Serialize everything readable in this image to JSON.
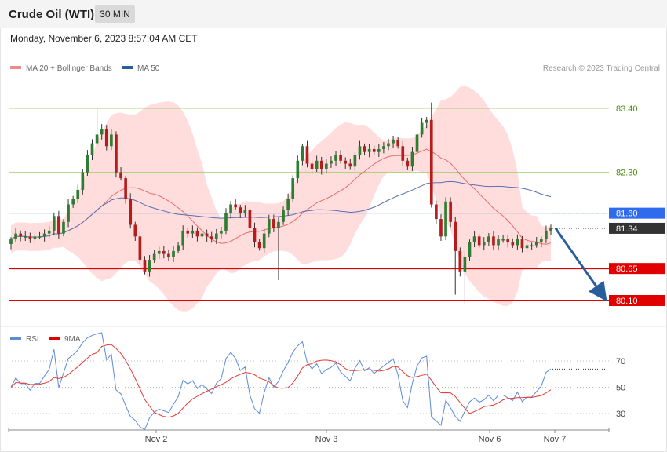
{
  "header": {
    "title": "Crude Oil (WTI)",
    "timeframe": "30 MIN"
  },
  "timestamp": "Monday, November 6, 2023 8:57:04 AM CET",
  "legend": {
    "ma20": "MA 20 + Bollinger Bands",
    "ma50": "MA 50"
  },
  "copyright": "Research © 2023 Trading Central",
  "colors": {
    "candle_up": "#2e7d32",
    "candle_down": "#b71c1c",
    "band_fill": "#ffd7d7",
    "ma20": "#e86a6a",
    "ma50": "#5b6fb0",
    "resistance": "#8bc34a",
    "support": "#e00000",
    "pivot": "#3b6fe0",
    "rsi": "#5b8bd9",
    "rsi_ma": "#e53935",
    "arrow": "#2a5d9b"
  },
  "chart_data": [
    {
      "type": "candlestick",
      "panel": "price",
      "y_axis_range": [
        79.6,
        84.1
      ],
      "x_ticks": [
        "Nov 2",
        "Nov 3",
        "Nov 6",
        "Nov 7"
      ],
      "levels": [
        {
          "label": "83.40",
          "value": 83.4,
          "kind": "resistance"
        },
        {
          "label": "82.30",
          "value": 82.3,
          "kind": "resistance"
        },
        {
          "label": "81.60",
          "value": 81.6,
          "kind": "pivot"
        },
        {
          "label": "81.34",
          "value": 81.34,
          "kind": "last"
        },
        {
          "label": "80.65",
          "value": 80.65,
          "kind": "support"
        },
        {
          "label": "80.10",
          "value": 80.1,
          "kind": "support"
        }
      ],
      "closes": [
        81.15,
        81.25,
        81.2,
        81.2,
        81.15,
        81.2,
        81.2,
        81.25,
        81.3,
        81.55,
        81.25,
        81.45,
        81.75,
        81.85,
        82.0,
        82.3,
        82.6,
        82.8,
        82.95,
        83.05,
        82.75,
        82.95,
        82.3,
        82.2,
        81.85,
        81.4,
        81.2,
        80.8,
        80.6,
        80.8,
        80.9,
        80.95,
        80.9,
        80.85,
        80.95,
        81.05,
        81.3,
        81.25,
        81.3,
        81.2,
        81.25,
        81.2,
        81.15,
        81.25,
        81.3,
        81.6,
        81.75,
        81.7,
        81.6,
        81.65,
        81.35,
        81.1,
        81.0,
        81.25,
        81.5,
        81.35,
        81.45,
        81.65,
        81.85,
        82.2,
        82.5,
        82.75,
        82.45,
        82.35,
        82.5,
        82.35,
        82.45,
        82.5,
        82.6,
        82.5,
        82.45,
        82.4,
        82.6,
        82.75,
        82.65,
        82.7,
        82.65,
        82.7,
        82.75,
        82.8,
        82.85,
        82.75,
        82.5,
        82.4,
        82.65,
        82.95,
        83.15,
        83.2,
        81.75,
        81.5,
        81.2,
        81.8,
        81.45,
        80.95,
        80.6,
        80.85,
        81.1,
        81.2,
        81.05,
        81.1,
        81.2,
        81.05,
        81.15,
        81.15,
        81.1,
        81.05,
        81.15,
        81.0,
        81.05,
        81.05,
        81.1,
        81.15,
        81.3,
        81.34
      ]
    },
    {
      "type": "line",
      "panel": "rsi",
      "y_ticks": [
        70,
        50,
        30
      ],
      "series": [
        {
          "name": "RSI"
        },
        {
          "name": "9MA"
        }
      ]
    }
  ]
}
